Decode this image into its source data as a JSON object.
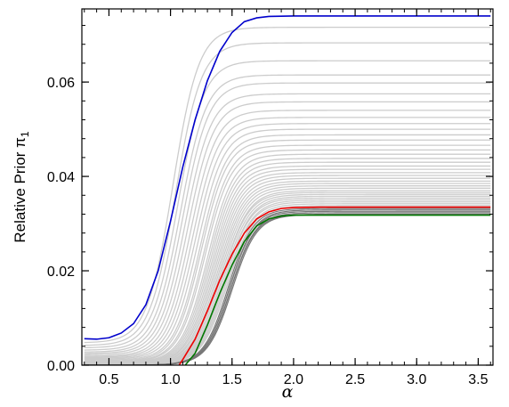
{
  "chart_data": {
    "type": "line",
    "title": "",
    "xlabel": "α",
    "ylabel": "Relative Prior π",
    "ylabel_subscript": "1",
    "xlim": [
      0.28,
      3.62
    ],
    "ylim": [
      0.0,
      0.0755
    ],
    "x_ticks": [
      0.5,
      1.0,
      1.5,
      2.0,
      2.5,
      3.0,
      3.5
    ],
    "x_tick_labels": [
      "0.5",
      "1.0",
      "1.5",
      "2.0",
      "2.5",
      "3.0",
      "3.5"
    ],
    "y_ticks": [
      0.0,
      0.02,
      0.04,
      0.06
    ],
    "y_tick_labels": [
      "0.00",
      "0.02",
      "0.04",
      "0.06"
    ],
    "grid": false,
    "colors": {
      "blue": "#0000cc",
      "red": "#ee0000",
      "green": "#007700",
      "gray": "#cccccc",
      "dark_gray": "#777777"
    },
    "highlighted_series": [
      {
        "color": "blue",
        "x": [
          0.3,
          0.4,
          0.5,
          0.6,
          0.7,
          0.8,
          0.9,
          1.0,
          1.1,
          1.2,
          1.3,
          1.4,
          1.5,
          1.6,
          1.7,
          1.8,
          2.0,
          2.5,
          3.0,
          3.6
        ],
        "y": [
          0.0056,
          0.0055,
          0.0058,
          0.0068,
          0.0088,
          0.0128,
          0.02,
          0.0305,
          0.042,
          0.052,
          0.0603,
          0.0665,
          0.0705,
          0.0728,
          0.0736,
          0.0739,
          0.074,
          0.074,
          0.074,
          0.074
        ]
      },
      {
        "color": "red",
        "x": [
          1.07,
          1.1,
          1.2,
          1.3,
          1.4,
          1.5,
          1.6,
          1.7,
          1.8,
          1.9,
          2.0,
          2.2,
          2.5,
          3.0,
          3.6
        ],
        "y": [
          0.0,
          0.0012,
          0.0055,
          0.0115,
          0.018,
          0.0235,
          0.028,
          0.031,
          0.0325,
          0.0332,
          0.0334,
          0.0335,
          0.0335,
          0.0335,
          0.0335
        ]
      },
      {
        "color": "green",
        "x": [
          1.12,
          1.2,
          1.3,
          1.4,
          1.5,
          1.6,
          1.7,
          1.8,
          1.9,
          2.0,
          2.2,
          2.5,
          3.0,
          3.6
        ],
        "y": [
          0.0,
          0.0025,
          0.0085,
          0.0152,
          0.0212,
          0.0262,
          0.0295,
          0.031,
          0.0316,
          0.0318,
          0.0318,
          0.0318,
          0.0318,
          0.0318
        ]
      }
    ],
    "background_curves": {
      "color": "gray",
      "plateaus": [
        0.0716,
        0.0683,
        0.0645,
        0.0615,
        0.0598,
        0.0575,
        0.0558,
        0.054,
        0.0525,
        0.0512,
        0.05,
        0.0488,
        0.0477,
        0.0466,
        0.0456,
        0.0447,
        0.0438,
        0.043,
        0.0422,
        0.0415,
        0.0408,
        0.0402,
        0.0396,
        0.039,
        0.0385,
        0.038,
        0.0375,
        0.037,
        0.0366,
        0.0362,
        0.0358,
        0.0354,
        0.035,
        0.0346,
        0.0342,
        0.0338
      ],
      "starts": [
        0.0048,
        0.0042,
        0.0037,
        0.0032,
        0.0028,
        0.0025,
        0.0022,
        0.0019,
        0.0017,
        0.0015,
        0.0013,
        0.0011,
        0.0009,
        0.0008,
        0.0007,
        0.0006,
        0.0005,
        0.0004,
        0.0003,
        0.0002,
        0.0002,
        0.0001,
        0.0001,
        0.0,
        0.0,
        0.0,
        0.0,
        0.0,
        0.0,
        0.0,
        0.0,
        0.0,
        0.0,
        0.0,
        0.0,
        0.0
      ],
      "midpoints": [
        1.02,
        1.04,
        1.06,
        1.08,
        1.1,
        1.12,
        1.14,
        1.16,
        1.18,
        1.2,
        1.22,
        1.24,
        1.25,
        1.27,
        1.28,
        1.3,
        1.31,
        1.32,
        1.33,
        1.34,
        1.35,
        1.36,
        1.37,
        1.38,
        1.39,
        1.4,
        1.41,
        1.42,
        1.42,
        1.43,
        1.44,
        1.44,
        1.45,
        1.45,
        1.46,
        1.46
      ]
    },
    "dark_band": {
      "color": "dark_gray",
      "plateaus": [
        0.0332,
        0.0329,
        0.0326,
        0.0323,
        0.032,
        0.0319
      ],
      "midpoints": [
        1.47,
        1.48,
        1.48,
        1.49,
        1.49,
        1.5
      ]
    }
  }
}
